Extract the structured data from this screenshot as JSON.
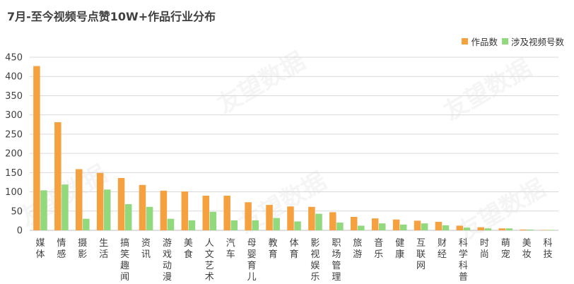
{
  "colors": {
    "series1": "#F5A13F",
    "series2": "#92D87C",
    "grid": "#D9D9D9",
    "axis": "#BFBFBF",
    "text": "#404040"
  },
  "watermark": "友望数据",
  "chart_data": {
    "type": "bar",
    "title": "7月-至今视频号点赞10W+作品行业分布",
    "xlabel": "",
    "ylabel": "",
    "ylim": [
      0,
      450
    ],
    "yticks": [
      0,
      50,
      100,
      150,
      200,
      250,
      300,
      350,
      400,
      450
    ],
    "grid": true,
    "legend_position": "top-right",
    "categories": [
      "媒体",
      "情感",
      "摄影",
      "生活",
      "搞笑趣闻",
      "资讯",
      "游戏动漫",
      "美食",
      "人文艺术",
      "汽车",
      "母婴育儿",
      "教育",
      "体育",
      "影视娱乐",
      "职场管理",
      "旅游",
      "音乐",
      "健康",
      "互联网",
      "财经",
      "科学科普",
      "时尚",
      "萌宠",
      "美妆",
      "科技"
    ],
    "series": [
      {
        "name": "作品数",
        "values": [
          427,
          281,
          159,
          149,
          136,
          118,
          103,
          101,
          90,
          90,
          73,
          66,
          62,
          61,
          47,
          35,
          31,
          28,
          25,
          22,
          12,
          8,
          5,
          2,
          1
        ]
      },
      {
        "name": "涉及视频号数",
        "values": [
          104,
          119,
          30,
          106,
          68,
          61,
          30,
          26,
          48,
          26,
          26,
          32,
          23,
          43,
          20,
          12,
          18,
          15,
          18,
          13,
          7,
          5,
          5,
          2,
          1
        ]
      }
    ]
  }
}
